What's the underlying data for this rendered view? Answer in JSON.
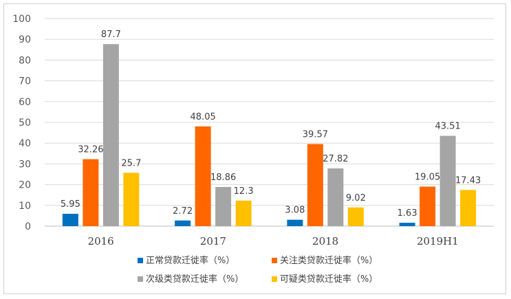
{
  "chart_data": {
    "type": "bar",
    "title": "",
    "xlabel": "",
    "ylabel": "",
    "ylim": [
      0,
      100
    ],
    "yticks": [
      0,
      10,
      20,
      30,
      40,
      50,
      60,
      70,
      80,
      90,
      100
    ],
    "grid": "horizontal",
    "legend_position": "bottom",
    "categories": [
      "2016",
      "2017",
      "2018",
      "2019H1"
    ],
    "series": [
      {
        "name": "正常贷款迁徙率（%）",
        "color": "#0070c0",
        "values": [
          5.95,
          2.72,
          3.08,
          1.63
        ],
        "labels": [
          "5.95",
          "2.72",
          "3.08",
          "1.63"
        ]
      },
      {
        "name": "关注类贷款迁徙率（%）",
        "color": "#ff6600",
        "values": [
          32.26,
          48.05,
          39.57,
          19.05
        ],
        "labels": [
          "32.26",
          "48.05",
          "39.57",
          "19.05"
        ]
      },
      {
        "name": "次级类贷款迁徙率（%）",
        "color": "#a5a5a5",
        "values": [
          87.7,
          18.86,
          27.82,
          43.51
        ],
        "labels": [
          "87.7",
          "18.86",
          "27.82",
          "43.51"
        ]
      },
      {
        "name": "可疑类贷款迁徙率（%）",
        "color": "#ffc000",
        "values": [
          25.7,
          12.3,
          9.02,
          17.43
        ],
        "labels": [
          "25.7",
          "12.3",
          "9.02",
          "17.43"
        ]
      }
    ]
  }
}
